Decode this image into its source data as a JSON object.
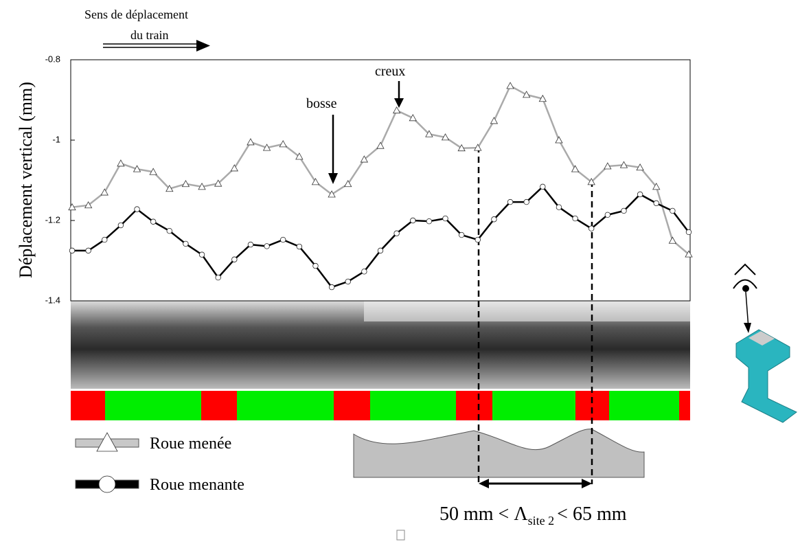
{
  "chart_data": {
    "type": "line",
    "ylabel": "Déplacement vertical (mm)",
    "annotations": {
      "direction": [
        "Sens de déplacement",
        "du train"
      ],
      "bump": "bosse",
      "hollow": "creux",
      "wavelength": {
        "left": "50 mm < Λ",
        "sub": "site 2",
        "right": "< 65 mm"
      }
    },
    "categories": [
      null,
      null,
      null,
      null,
      null,
      null,
      null,
      null,
      null,
      null,
      null,
      null,
      null,
      null,
      null,
      null,
      null,
      null,
      null,
      null,
      null,
      null,
      null,
      null,
      null,
      null,
      null,
      null,
      null,
      null,
      null,
      null,
      null,
      null,
      null,
      null,
      null,
      null,
      null
    ],
    "series": [
      {
        "name": "Roue menée",
        "color": "#aaaaaa",
        "marker": "triangle",
        "values": [
          -1.167,
          -1.162,
          -1.13,
          -1.058,
          -1.072,
          -1.079,
          -1.121,
          -1.109,
          -1.116,
          -1.108,
          -1.07,
          -1.005,
          -1.019,
          -1.01,
          -1.041,
          -1.104,
          -1.135,
          -1.109,
          -1.048,
          -1.014,
          -0.926,
          -0.945,
          -0.985,
          -0.993,
          -1.02,
          -1.019,
          -0.952,
          -0.865,
          -0.887,
          -0.897,
          -1.0,
          -1.072,
          -1.104,
          -1.065,
          -1.062,
          -1.068,
          -1.116,
          -1.25,
          -1.284
        ]
      },
      {
        "name": "Roue menante",
        "color": "#000000",
        "marker": "circle",
        "values": [
          -1.275,
          -1.275,
          -1.248,
          -1.212,
          -1.172,
          -1.203,
          -1.226,
          -1.258,
          -1.285,
          -1.342,
          -1.297,
          -1.26,
          -1.264,
          -1.248,
          -1.265,
          -1.313,
          -1.366,
          -1.352,
          -1.327,
          -1.275,
          -1.232,
          -1.2,
          -1.202,
          -1.195,
          -1.236,
          -1.248,
          -1.197,
          -1.154,
          -1.154,
          -1.116,
          -1.167,
          -1.195,
          -1.22,
          -1.186,
          -1.176,
          -1.135,
          -1.157,
          -1.176,
          -1.229
        ]
      }
    ],
    "ylim": [
      -1.4,
      -0.8
    ],
    "yticks": [
      -0.8,
      -1,
      -1.2,
      -1.4
    ],
    "grid": false
  }
}
